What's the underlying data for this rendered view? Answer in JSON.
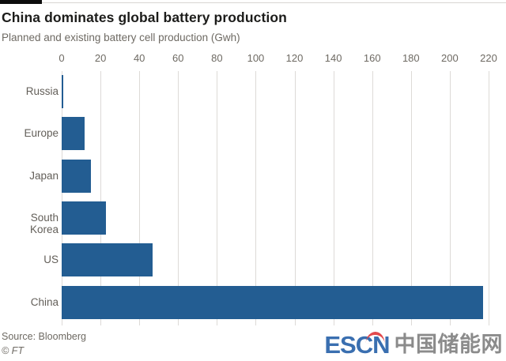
{
  "header": {
    "title": "China dominates global battery production",
    "subtitle": "Planned and existing battery cell production (Gwh)"
  },
  "chart_data": {
    "type": "bar",
    "orientation": "horizontal",
    "title": "China dominates global battery production",
    "subtitle": "Planned and existing battery cell production (Gwh)",
    "categories": [
      "Russia",
      "Europe",
      "Japan",
      "South Korea",
      "US",
      "China"
    ],
    "values": [
      1,
      12,
      15,
      23,
      47,
      217
    ],
    "unit": "Gwh",
    "xlim": [
      0,
      220
    ],
    "x_ticks": [
      0,
      20,
      40,
      60,
      80,
      100,
      120,
      140,
      160,
      180,
      200,
      220
    ],
    "grid": true,
    "legend": "none",
    "bar_color": "#235d92"
  },
  "footer": {
    "source": "Source: Bloomberg",
    "copyright": "© FT"
  },
  "logo": {
    "text_en": "ESCN",
    "text_zh": "中国储能网",
    "blue": "#3a6fb0",
    "gray": "#8b8b8b",
    "red": "#e2494d"
  }
}
